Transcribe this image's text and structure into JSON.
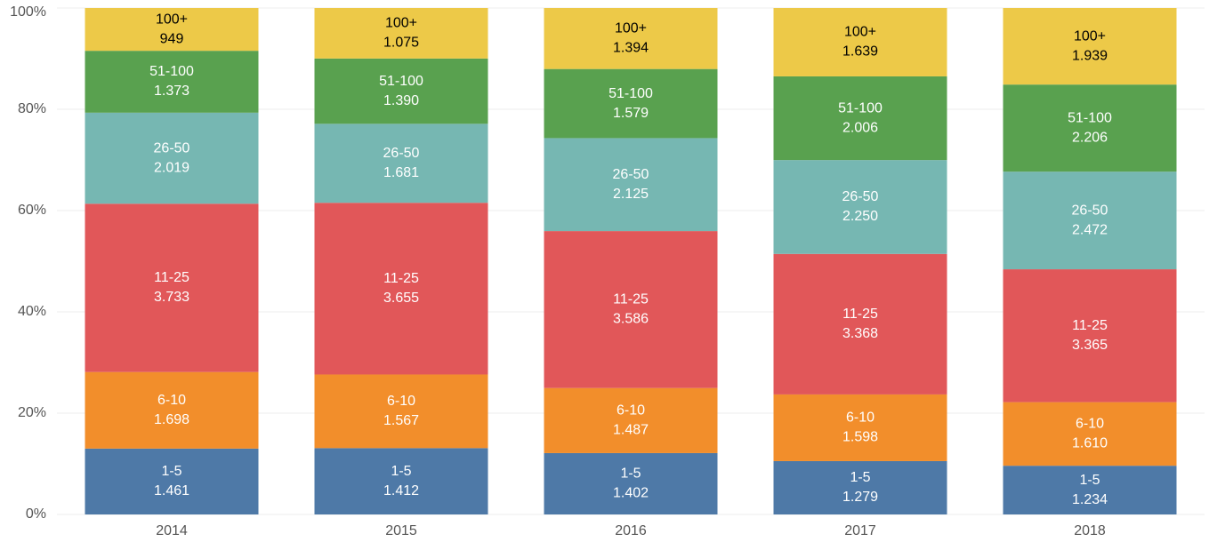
{
  "chart_data": {
    "type": "bar",
    "stacking": "percent",
    "grid": true,
    "categories": [
      "2014",
      "2015",
      "2016",
      "2017",
      "2018"
    ],
    "ylim": [
      0,
      100
    ],
    "yticks": [
      {
        "value": 0,
        "label": "0%"
      },
      {
        "value": 20,
        "label": "20%"
      },
      {
        "value": 40,
        "label": "40%"
      },
      {
        "value": 60,
        "label": "60%"
      },
      {
        "value": 80,
        "label": "80%"
      },
      {
        "value": 100,
        "label": "100%"
      }
    ],
    "series": [
      {
        "name": "1-5",
        "color": "#4e79a7",
        "values": [
          1461,
          1412,
          1402,
          1279,
          1234
        ],
        "value_labels": [
          "1.461",
          "1.412",
          "1.402",
          "1.279",
          "1.234"
        ]
      },
      {
        "name": "6-10",
        "color": "#f28e2b",
        "values": [
          1698,
          1567,
          1487,
          1598,
          1610
        ],
        "value_labels": [
          "1.698",
          "1.567",
          "1.487",
          "1.598",
          "1.610"
        ]
      },
      {
        "name": "11-25",
        "color": "#e15759",
        "values": [
          3733,
          3655,
          3586,
          3368,
          3365
        ],
        "value_labels": [
          "3.733",
          "3.655",
          "3.586",
          "3.368",
          "3.365"
        ]
      },
      {
        "name": "26-50",
        "color": "#76b7b2",
        "values": [
          2019,
          1681,
          2125,
          2250,
          2472
        ],
        "value_labels": [
          "2.019",
          "1.681",
          "2.125",
          "2.250",
          "2.472"
        ]
      },
      {
        "name": "51-100",
        "color": "#59a14f",
        "values": [
          1373,
          1390,
          1579,
          2006,
          2206
        ],
        "value_labels": [
          "1.373",
          "1.390",
          "1.579",
          "2.006",
          "2.206"
        ]
      },
      {
        "name": "100+",
        "color": "#edc948",
        "values": [
          949,
          1075,
          1394,
          1639,
          1939
        ],
        "value_labels": [
          "949",
          "1.075",
          "1.394",
          "1.639",
          "1.939"
        ]
      }
    ]
  }
}
